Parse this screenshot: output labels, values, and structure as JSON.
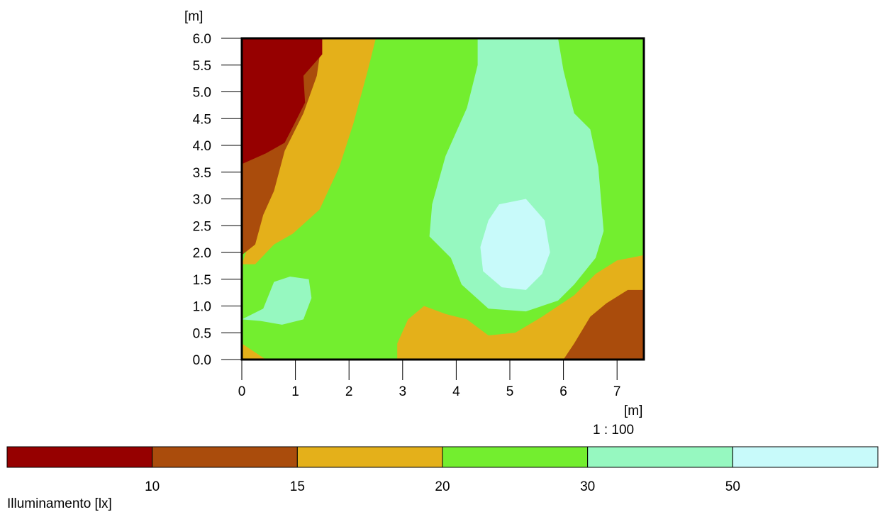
{
  "chart_data": {
    "type": "heatmap",
    "subtype": "contour",
    "title": "",
    "x_unit_label": "[m]",
    "y_unit_label": "[m]",
    "scale_label": "1 : 100",
    "xlim": [
      0,
      7.5
    ],
    "ylim": [
      0,
      6
    ],
    "x_ticks": [
      "0",
      "1",
      "2",
      "3",
      "4",
      "5",
      "6",
      "7"
    ],
    "y_ticks": [
      "0.0",
      "0.5",
      "1.0",
      "1.5",
      "2.0",
      "2.5",
      "3.0",
      "3.5",
      "4.0",
      "4.5",
      "5.0",
      "5.5",
      "6.0"
    ],
    "levels": [
      {
        "name": "< 10",
        "color": "#960000"
      },
      {
        "name": "10 - 15",
        "color": "#AA4C0C"
      },
      {
        "name": "15 - 20",
        "color": "#E4B01A"
      },
      {
        "name": "20 - 30",
        "color": "#73EE2F"
      },
      {
        "name": "30 - 50",
        "color": "#96F8C0"
      },
      {
        "name": "> 50",
        "color": "#C8FAFA"
      }
    ],
    "legend": {
      "title": "Illuminamento [lx]",
      "thresholds": [
        "10",
        "15",
        "20",
        "30",
        "50"
      ],
      "placement": "bottom"
    },
    "regions": [
      {
        "level": 3,
        "points": [
          [
            0,
            0
          ],
          [
            7.5,
            0
          ],
          [
            7.5,
            6
          ],
          [
            0,
            6
          ]
        ]
      },
      {
        "level": 2,
        "points": [
          [
            1.5,
            6
          ],
          [
            2.5,
            6
          ],
          [
            2.35,
            5.4
          ],
          [
            2.08,
            4.4
          ],
          [
            1.82,
            3.6
          ],
          [
            1.45,
            2.8
          ],
          [
            0.95,
            2.35
          ],
          [
            0.6,
            2.15
          ],
          [
            0.25,
            1.78
          ],
          [
            0,
            1.78
          ]
        ]
      },
      {
        "level": 1,
        "points": [
          [
            0,
            6
          ],
          [
            1.5,
            6
          ],
          [
            1.4,
            5.3
          ],
          [
            1.15,
            4.6
          ],
          [
            0.8,
            3.9
          ],
          [
            0.6,
            3.15
          ],
          [
            0.4,
            2.7
          ],
          [
            0.25,
            2.15
          ],
          [
            0,
            1.95
          ]
        ]
      },
      {
        "level": 0,
        "points": [
          [
            0,
            6
          ],
          [
            1.5,
            6
          ],
          [
            1.5,
            5.7
          ],
          [
            1.15,
            5.3
          ],
          [
            1.18,
            4.8
          ],
          [
            0.98,
            4.4
          ],
          [
            0.8,
            4.05
          ],
          [
            0.45,
            3.85
          ],
          [
            0,
            3.65
          ]
        ]
      },
      {
        "level": 4,
        "points": [
          [
            4.4,
            6
          ],
          [
            5.9,
            6
          ],
          [
            6.0,
            5.4
          ],
          [
            6.2,
            4.6
          ],
          [
            6.5,
            4.3
          ],
          [
            6.65,
            3.6
          ],
          [
            6.75,
            2.4
          ],
          [
            6.6,
            1.9
          ],
          [
            6.2,
            1.4
          ],
          [
            5.9,
            1.1
          ],
          [
            5.3,
            0.9
          ],
          [
            4.6,
            0.95
          ],
          [
            4.1,
            1.4
          ],
          [
            3.9,
            1.9
          ],
          [
            3.5,
            2.3
          ],
          [
            3.55,
            2.9
          ],
          [
            3.8,
            3.8
          ],
          [
            4.2,
            4.7
          ],
          [
            4.4,
            5.5
          ]
        ]
      },
      {
        "level": 5,
        "points": [
          [
            4.8,
            2.9
          ],
          [
            5.3,
            3.0
          ],
          [
            5.65,
            2.6
          ],
          [
            5.75,
            2.0
          ],
          [
            5.6,
            1.6
          ],
          [
            5.3,
            1.3
          ],
          [
            4.85,
            1.35
          ],
          [
            4.5,
            1.65
          ],
          [
            4.45,
            2.1
          ],
          [
            4.6,
            2.6
          ]
        ]
      },
      {
        "level": 4,
        "points": [
          [
            0,
            0.75
          ],
          [
            0.4,
            0.95
          ],
          [
            0.6,
            1.45
          ],
          [
            0.9,
            1.55
          ],
          [
            1.25,
            1.5
          ],
          [
            1.3,
            1.15
          ],
          [
            1.15,
            0.75
          ],
          [
            0.75,
            0.65
          ],
          [
            0.35,
            0.72
          ]
        ]
      },
      {
        "level": 2,
        "points": [
          [
            2.9,
            0
          ],
          [
            7.5,
            0
          ],
          [
            7.5,
            1.95
          ],
          [
            7.0,
            1.85
          ],
          [
            6.6,
            1.6
          ],
          [
            6.2,
            1.2
          ],
          [
            5.6,
            0.8
          ],
          [
            5.1,
            0.5
          ],
          [
            4.6,
            0.45
          ],
          [
            4.2,
            0.75
          ],
          [
            3.8,
            0.85
          ],
          [
            3.4,
            1.0
          ],
          [
            3.1,
            0.75
          ],
          [
            2.9,
            0.3
          ]
        ]
      },
      {
        "level": 1,
        "points": [
          [
            6.0,
            0
          ],
          [
            7.5,
            0
          ],
          [
            7.5,
            1.3
          ],
          [
            7.2,
            1.3
          ],
          [
            6.8,
            1.05
          ],
          [
            6.5,
            0.8
          ],
          [
            6.2,
            0.3
          ]
        ]
      },
      {
        "level": 2,
        "points": [
          [
            0,
            0
          ],
          [
            0.45,
            0
          ],
          [
            0,
            0.3
          ]
        ]
      }
    ]
  }
}
